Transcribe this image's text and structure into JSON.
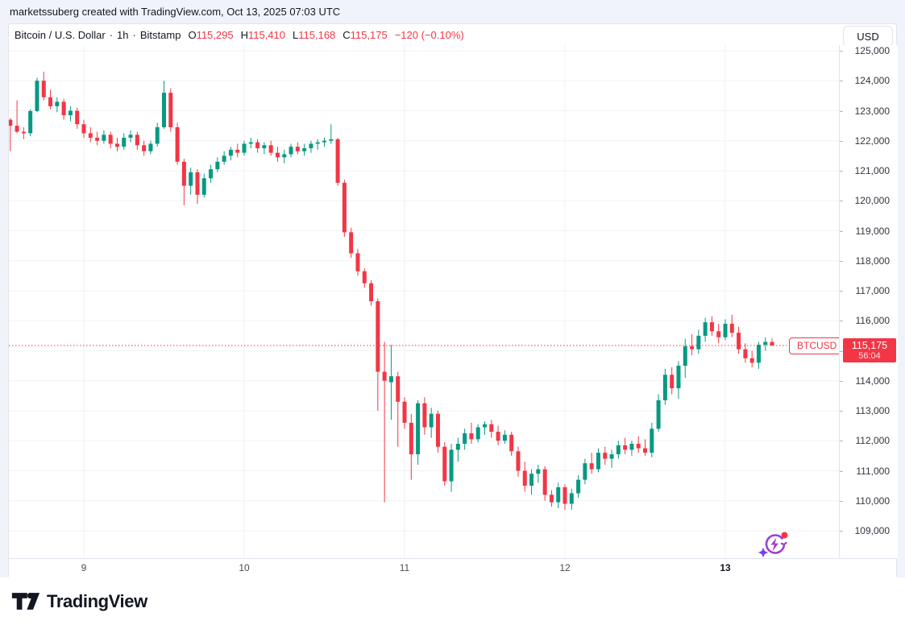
{
  "topbar": {
    "attribution": "marketssuberg created with TradingView.com, Oct 13, 2025 07:03 UTC"
  },
  "header": {
    "symbol_title": "Bitcoin / U.S. Dollar",
    "sep": "·",
    "interval": "1h",
    "exchange": "Bitstamp",
    "ohlc": {
      "o_label": "O",
      "o": "115,295",
      "h_label": "H",
      "h": "115,410",
      "l_label": "L",
      "l": "115,168",
      "c_label": "C",
      "c": "115,175"
    },
    "change": "−120 (−0.10%)",
    "currency_button": "USD"
  },
  "price_label": {
    "symbol": "BTCUSD",
    "price": "115,175",
    "countdown": "56:04"
  },
  "footer": {
    "brand": "TradingView"
  },
  "colors": {
    "up": "#089981",
    "down": "#F23645",
    "accent_red": "#F23645",
    "text": "#131722",
    "grid": "#f0f2f5",
    "border": "#e0e3eb",
    "bg": "#f0f3fa"
  },
  "chart_data": {
    "type": "candlestick",
    "title": "Bitcoin / U.S. Dollar · 1h · Bitstamp",
    "symbol": "BTCUSD",
    "exchange": "Bitstamp",
    "interval": "1h",
    "last_price": 115175,
    "last_bar_countdown": "56:04",
    "ylim": [
      108250,
      125200
    ],
    "grid": true,
    "legend_position": "none",
    "price_axis_ticks": [
      125000,
      124000,
      123000,
      122000,
      121000,
      120000,
      119000,
      118000,
      117000,
      116000,
      115000,
      114000,
      113000,
      112000,
      111000,
      110000,
      109000
    ],
    "time_axis_ticks": [
      {
        "label": "9",
        "bar_index": 11,
        "bold": false
      },
      {
        "label": "10",
        "bar_index": 35,
        "bold": false
      },
      {
        "label": "11",
        "bar_index": 59,
        "bold": false
      },
      {
        "label": "12",
        "bar_index": 83,
        "bold": false
      },
      {
        "label": "13",
        "bar_index": 107,
        "bold": true
      }
    ],
    "candles": [
      [
        "10-08 13:00",
        122700,
        122750,
        121650,
        122500
      ],
      [
        "10-08 14:00",
        122500,
        123350,
        122250,
        122300
      ],
      [
        "10-08 15:00",
        122300,
        122450,
        122050,
        122250
      ],
      [
        "10-08 16:00",
        122250,
        123050,
        122150,
        122990
      ],
      [
        "10-08 17:00",
        122990,
        124100,
        122950,
        124000
      ],
      [
        "10-08 18:00",
        124000,
        124300,
        123350,
        123450
      ],
      [
        "10-08 19:00",
        123450,
        123700,
        123050,
        123150
      ],
      [
        "10-08 20:00",
        123150,
        123450,
        122950,
        123300
      ],
      [
        "10-08 21:00",
        123300,
        123400,
        122700,
        122850
      ],
      [
        "10-08 22:00",
        122850,
        123150,
        122650,
        123000
      ],
      [
        "10-08 23:00",
        123000,
        123100,
        122400,
        122550
      ],
      [
        "10-09 00:00",
        122550,
        122700,
        122100,
        122250
      ],
      [
        "10-09 01:00",
        122250,
        122450,
        121950,
        122100
      ],
      [
        "10-09 02:00",
        122100,
        122300,
        121850,
        122000
      ],
      [
        "10-09 03:00",
        122000,
        122350,
        121900,
        122200
      ],
      [
        "10-09 04:00",
        122200,
        122300,
        121750,
        121900
      ],
      [
        "10-09 05:00",
        121900,
        122100,
        121650,
        121800
      ],
      [
        "10-09 06:00",
        121800,
        122250,
        121700,
        122100
      ],
      [
        "10-09 07:00",
        122100,
        122350,
        121950,
        122200
      ],
      [
        "10-09 08:00",
        122200,
        122300,
        121700,
        121850
      ],
      [
        "10-09 09:00",
        121850,
        122000,
        121500,
        121650
      ],
      [
        "10-09 10:00",
        121650,
        122000,
        121550,
        121900
      ],
      [
        "10-09 11:00",
        121900,
        122600,
        121800,
        122450
      ],
      [
        "10-09 12:00",
        122450,
        124000,
        122400,
        123600
      ],
      [
        "10-09 13:00",
        123600,
        123750,
        122300,
        122450
      ],
      [
        "10-09 14:00",
        122450,
        122600,
        121200,
        121300
      ],
      [
        "10-09 15:00",
        121300,
        121400,
        119850,
        120500
      ],
      [
        "10-09 16:00",
        120500,
        121100,
        120200,
        120950
      ],
      [
        "10-09 17:00",
        120950,
        121050,
        119900,
        120200
      ],
      [
        "10-09 18:00",
        120200,
        120900,
        120100,
        120750
      ],
      [
        "10-09 19:00",
        120750,
        121200,
        120600,
        121050
      ],
      [
        "10-09 20:00",
        121050,
        121450,
        120950,
        121300
      ],
      [
        "10-09 21:00",
        121300,
        121650,
        121200,
        121500
      ],
      [
        "10-09 22:00",
        121500,
        121800,
        121350,
        121700
      ],
      [
        "10-09 23:00",
        121700,
        121900,
        121450,
        121600
      ],
      [
        "10-10 00:00",
        121600,
        122000,
        121500,
        121900
      ],
      [
        "10-10 01:00",
        121900,
        122100,
        121750,
        121950
      ],
      [
        "10-10 02:00",
        121950,
        122050,
        121600,
        121750
      ],
      [
        "10-10 03:00",
        121750,
        121950,
        121550,
        121850
      ],
      [
        "10-10 04:00",
        121850,
        122000,
        121500,
        121600
      ],
      [
        "10-10 05:00",
        121600,
        121800,
        121300,
        121450
      ],
      [
        "10-10 06:00",
        121450,
        121700,
        121250,
        121550
      ],
      [
        "10-10 07:00",
        121550,
        121900,
        121450,
        121800
      ],
      [
        "10-10 08:00",
        121800,
        121950,
        121550,
        121650
      ],
      [
        "10-10 09:00",
        121650,
        121900,
        121500,
        121750
      ],
      [
        "10-10 10:00",
        121750,
        122000,
        121600,
        121900
      ],
      [
        "10-10 11:00",
        121900,
        122050,
        121700,
        121950
      ],
      [
        "10-10 12:00",
        121950,
        122100,
        121800,
        122000
      ],
      [
        "10-10 13:00",
        122000,
        122550,
        121900,
        122050
      ],
      [
        "10-10 14:00",
        122050,
        122100,
        120500,
        120600
      ],
      [
        "10-10 15:00",
        120600,
        120700,
        118800,
        118950
      ],
      [
        "10-10 16:00",
        118950,
        119100,
        118100,
        118250
      ],
      [
        "10-10 17:00",
        118250,
        118400,
        117500,
        117650
      ],
      [
        "10-10 18:00",
        117650,
        117750,
        117100,
        117250
      ],
      [
        "10-10 19:00",
        117250,
        117350,
        116500,
        116650
      ],
      [
        "10-10 20:00",
        116650,
        116750,
        113000,
        114300
      ],
      [
        "10-10 21:00",
        114300,
        115300,
        109950,
        114000
      ],
      [
        "10-10 22:00",
        113950,
        115200,
        112700,
        114150
      ],
      [
        "10-10 23:00",
        114150,
        114300,
        111800,
        113300
      ],
      [
        "10-11 00:00",
        113300,
        113450,
        112400,
        112600
      ],
      [
        "10-11 01:00",
        112600,
        112900,
        110700,
        111550
      ],
      [
        "10-11 02:00",
        111550,
        113350,
        111200,
        113250
      ],
      [
        "10-11 03:00",
        113250,
        113450,
        112200,
        112450
      ],
      [
        "10-11 04:00",
        112450,
        113100,
        112100,
        112900
      ],
      [
        "10-11 05:00",
        112900,
        113000,
        111600,
        111800
      ],
      [
        "10-11 06:00",
        111800,
        111950,
        110500,
        110650
      ],
      [
        "10-11 07:00",
        110650,
        111900,
        110300,
        111700
      ],
      [
        "10-11 08:00",
        111700,
        112100,
        111300,
        111900
      ],
      [
        "10-11 09:00",
        111900,
        112400,
        111700,
        112250
      ],
      [
        "10-11 10:00",
        112250,
        112600,
        111900,
        112050
      ],
      [
        "10-11 11:00",
        112050,
        112550,
        111950,
        112450
      ],
      [
        "10-11 12:00",
        112450,
        112650,
        112200,
        112550
      ],
      [
        "10-11 13:00",
        112550,
        112700,
        112100,
        112300
      ],
      [
        "10-11 14:00",
        112300,
        112500,
        111850,
        112000
      ],
      [
        "10-11 15:00",
        112000,
        112350,
        111900,
        112200
      ],
      [
        "10-11 16:00",
        112200,
        112300,
        111500,
        111650
      ],
      [
        "10-11 17:00",
        111650,
        111800,
        110800,
        111000
      ],
      [
        "10-11 18:00",
        111000,
        111300,
        110300,
        110500
      ],
      [
        "10-11 19:00",
        110500,
        111050,
        110200,
        110900
      ],
      [
        "10-11 20:00",
        110900,
        111200,
        110600,
        111050
      ],
      [
        "10-11 21:00",
        111050,
        111150,
        110000,
        110200
      ],
      [
        "10-11 22:00",
        110200,
        110350,
        109800,
        109950
      ],
      [
        "10-11 23:00",
        109950,
        110600,
        109750,
        110450
      ],
      [
        "10-12 00:00",
        110450,
        110550,
        109700,
        109900
      ],
      [
        "10-12 01:00",
        109900,
        110400,
        109700,
        110250
      ],
      [
        "10-12 02:00",
        110250,
        110850,
        110100,
        110700
      ],
      [
        "10-12 03:00",
        110700,
        111400,
        110550,
        111250
      ],
      [
        "10-12 04:00",
        111250,
        111600,
        110900,
        111050
      ],
      [
        "10-12 05:00",
        111050,
        111750,
        110950,
        111600
      ],
      [
        "10-12 06:00",
        111600,
        111800,
        111200,
        111400
      ],
      [
        "10-12 07:00",
        111400,
        111700,
        111100,
        111550
      ],
      [
        "10-12 08:00",
        111550,
        112000,
        111400,
        111850
      ],
      [
        "10-12 09:00",
        111850,
        112100,
        111550,
        111700
      ],
      [
        "10-12 10:00",
        111700,
        112000,
        111500,
        111900
      ],
      [
        "10-12 11:00",
        111900,
        112150,
        111600,
        111750
      ],
      [
        "10-12 12:00",
        111750,
        112050,
        111500,
        111600
      ],
      [
        "10-12 13:00",
        111600,
        112600,
        111450,
        112400
      ],
      [
        "10-12 14:00",
        112400,
        113550,
        112300,
        113350
      ],
      [
        "10-12 15:00",
        113350,
        114400,
        113200,
        114200
      ],
      [
        "10-12 16:00",
        114200,
        114450,
        113550,
        113750
      ],
      [
        "10-12 17:00",
        113750,
        114650,
        113400,
        114500
      ],
      [
        "10-12 18:00",
        114500,
        115400,
        114100,
        115150
      ],
      [
        "10-12 19:00",
        115150,
        115550,
        114850,
        115050
      ],
      [
        "10-12 20:00",
        115050,
        115700,
        114900,
        115500
      ],
      [
        "10-12 21:00",
        115500,
        116100,
        115300,
        115950
      ],
      [
        "10-12 22:00",
        115950,
        116150,
        115500,
        115650
      ],
      [
        "10-12 23:00",
        115650,
        115900,
        115250,
        115450
      ],
      [
        "10-13 00:00",
        115450,
        116050,
        115350,
        115900
      ],
      [
        "10-13 01:00",
        115900,
        116200,
        115450,
        115600
      ],
      [
        "10-13 02:00",
        115600,
        115800,
        114900,
        115050
      ],
      [
        "10-13 03:00",
        115050,
        115250,
        114600,
        114750
      ],
      [
        "10-13 04:00",
        114750,
        115000,
        114450,
        114600
      ],
      [
        "10-13 05:00",
        114600,
        115300,
        114400,
        115200
      ],
      [
        "10-13 06:00",
        115200,
        115450,
        115000,
        115295
      ],
      [
        "10-13 07:00",
        115295,
        115410,
        115168,
        115175
      ]
    ]
  }
}
